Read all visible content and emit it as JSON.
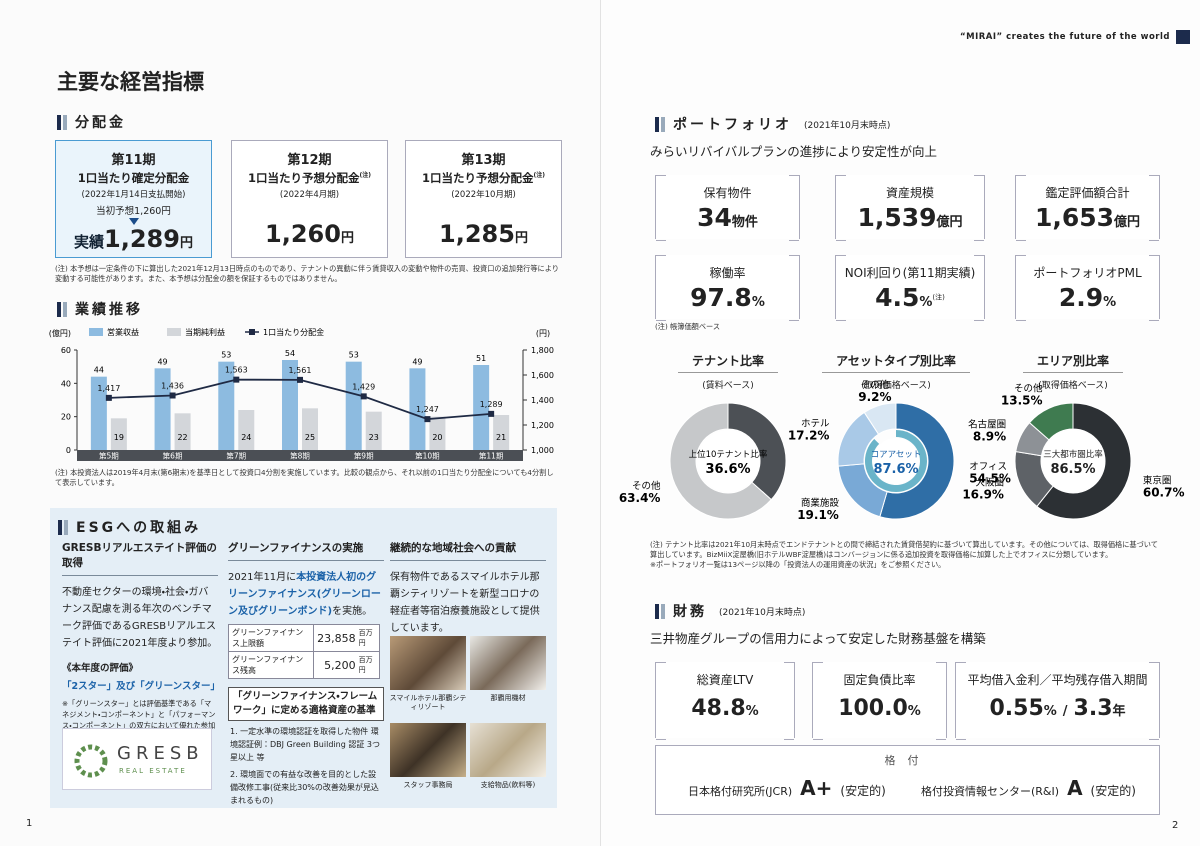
{
  "left_page": {
    "title": "主要な経営指標",
    "distributions": {
      "heading": "分配金",
      "cards": [
        {
          "period": "第11期",
          "label": "1口当たり確定分配金",
          "date": "(2022年1月14日支払開始)",
          "forecast": "当初予想1,260円",
          "result_label": "実績",
          "value": "1,289",
          "unit": "円"
        },
        {
          "period": "第12期",
          "label": "1口当たり予想分配金",
          "note_mark": "(注)",
          "date": "(2022年4月期)",
          "value": "1,260",
          "unit": "円"
        },
        {
          "period": "第13期",
          "label": "1口当たり予想分配金",
          "note_mark": "(注)",
          "date": "(2022年10月期)",
          "value": "1,285",
          "unit": "円"
        }
      ],
      "note": "(注) 本予想は一定条件の下に算出した2021年12月13日時点のものであり、テナントの異動に伴う賃貸収入の変動や物件の売買、投資口の追加発行等により変動する可能性があります。また、本予想は分配金の額を保証するものではありません。"
    },
    "performance": {
      "heading": "業績推移",
      "note": "(注) 本投資法人は2019年4月末(第6期末)を基準日として投資口4分割を実施しています。比較の観点から、それ以前の1口当たり分配金についても4分割して表示しています。"
    },
    "esg": {
      "heading": "ESGへの取組み",
      "gresb": {
        "heading": "GRESBリアルエステイト評価の取得",
        "body": "不動産セクターの環境・社会・ガバナンス配慮を測る年次のベンチマーク評価であるGRESBリアルエステイト評価に2021年度より参加。",
        "subheading": "《本年度の評価》",
        "rating": "「2スター」及び「グリーンスター」",
        "note": "※「グリーンスター」とは評価基準である「マネジメント・コンポーネント」と「パフォーマンス・コンポーネント」の双方において優れた参加者であることを示す評価です。",
        "logo": "GRESB",
        "logo_sub": "REAL ESTATE"
      },
      "green_finance": {
        "heading": "グリーンファイナンスの実施",
        "body": [
          "2021年11月に",
          "本投資法人初のグリーンファイナンス(グリーンローン及びグリーンボンド)",
          "を実施。"
        ],
        "table": [
          [
            "グリーンファイナンス上限額",
            "23,858",
            "百万円"
          ],
          [
            "グリーンファイナンス残高",
            "5,200",
            "百万円"
          ]
        ],
        "framework_title": "「グリーンファイナンス・フレームワーク」に定める適格資産の基準",
        "criteria": [
          "1. 一定水準の環境認証を取得した物件 環境認証例：DBJ Green Building 認証 3つ星以上 等",
          "2. 環境面での有益な改善を目的とした設備改修工事(従来比30%の改善効果が見込まれるもの)"
        ]
      },
      "community": {
        "heading": "継続的な地域社会への貢献",
        "body": "保有物件であるスマイルホテル那覇シティリゾートを新型コロナの軽症者等宿泊療養施設として提供しています。",
        "photo_captions": [
          "スマイルホテル那覇シティリゾート",
          "那覇用機材",
          "スタッフ事務局",
          "支給物品(飲料等)"
        ]
      }
    },
    "page_number": "1"
  },
  "right_page": {
    "tagline": "“MIRAI” creates the future of the world",
    "portfolio": {
      "heading": "ポートフォリオ",
      "date": "(2021年10月末時点)",
      "lead": "みらいリバイバルプランの進捗により安定性が向上",
      "stats": [
        {
          "label": "保有物件",
          "value": "34",
          "unit": "物件"
        },
        {
          "label": "資産規模",
          "value": "1,539",
          "unit": "億円"
        },
        {
          "label": "鑑定評価額合計",
          "value": "1,653",
          "unit": "億円"
        },
        {
          "label": "稼働率",
          "value": "97.8",
          "unit": "%"
        },
        {
          "label": "NOI利回り(第11期実績)",
          "value": "4.5",
          "unit": "%",
          "note_mark": "(注)"
        },
        {
          "label": "ポートフォリオPML",
          "value": "2.9",
          "unit": "%"
        }
      ],
      "note": "(注) 帳簿価額ベース",
      "chart_notes": [
        "(注) テナント比率は2021年10月末時点でエンドテナントとの間で締結された賃貸借契約に基づいて算出しています。その他については、取得価格に基づいて算出しています。BizMiiX淀屋橋(旧ホテルWBF淀屋橋)はコンバージョンに係る追加投資を取得価格に加算した上でオフィスに分類しています。",
        "※ポートフォリオ一覧は13ページ以降の「投資法人の運用資産の状況」をご参照ください。"
      ]
    },
    "finance": {
      "heading": "財務",
      "date": "(2021年10月末時点)",
      "lead": "三井物産グループの信用力によって安定した財務基盤を構築",
      "stats": [
        {
          "label": "総資産LTV",
          "value": "48.8",
          "unit": "%"
        },
        {
          "label": "固定負債比率",
          "value": "100.0",
          "unit": "%"
        },
        {
          "label": "平均借入金利／平均残存借入期間",
          "value": "0.55",
          "unit": "%",
          "separator": "/",
          "value2": "3.3",
          "unit2": "年"
        }
      ],
      "rating_title": "格付",
      "ratings": [
        {
          "agency": "日本格付研究所(JCR)",
          "grade": "A+",
          "outlook": "(安定的)"
        },
        {
          "agency": "格付投資情報センター(R&I)",
          "grade": "A",
          "outlook": "(安定的)"
        }
      ]
    },
    "page_number": "2"
  },
  "chart_data": [
    {
      "type": "bar",
      "categories": [
        "第5期",
        "第6期",
        "第7期",
        "第8期",
        "第9期",
        "第10期",
        "第11期"
      ],
      "series": [
        {
          "name": "営業収益",
          "color": "#8dbbe0",
          "values": [
            44,
            49,
            53,
            54,
            53,
            49,
            51
          ]
        },
        {
          "name": "当期純利益",
          "color": "#d3d6da",
          "values": [
            19,
            22,
            24,
            25,
            23,
            20,
            21
          ]
        },
        {
          "name": "1口当たり分配金",
          "color": "#1f2a44",
          "axis": "y2",
          "marker": "square",
          "values": [
            1417,
            1436,
            1563,
            1561,
            1429,
            1247,
            1289
          ],
          "value_labels": [
            "1,417",
            "1,436",
            "1,563",
            "1,561",
            "1,429",
            "1,247",
            "1,289"
          ]
        }
      ],
      "y_label": "(億円)",
      "y2_label": "(円)",
      "ylim": [
        0,
        60
      ],
      "yticks": [
        0,
        20,
        40,
        60
      ],
      "y2lim": [
        1000,
        1800
      ],
      "y2ticks": [
        {
          "value": 1000,
          "label": "1,000"
        },
        {
          "value": 1200,
          "label": "1,200"
        },
        {
          "value": 1400,
          "label": "1,400"
        },
        {
          "value": 1600,
          "label": "1,600"
        },
        {
          "value": 1800,
          "label": "1,800"
        }
      ],
      "legend": "top"
    },
    {
      "type": "donut",
      "title": "テナント比率",
      "subtitle": "(賃料ベース)",
      "categories": [
        "上位10テナント比率",
        "その他"
      ],
      "values": [
        36.6,
        63.4
      ],
      "value_labels": [
        "36.6%",
        "63.4%"
      ],
      "colors": [
        "#4c5055",
        "#c6c8ca"
      ]
    },
    {
      "type": "donut",
      "title": "アセットタイプ別比率",
      "subtitle": "(取得価格ベース)",
      "categories": [
        "オフィス",
        "商業施設",
        "ホテル",
        "その他"
      ],
      "values": [
        54.5,
        19.1,
        17.2,
        9.2
      ],
      "value_labels": [
        "54.5%",
        "19.1%",
        "17.2%",
        "9.2%"
      ],
      "colors": [
        "#2f6ea6",
        "#79a9d6",
        "#a9c9e7",
        "#d9e7f3"
      ],
      "center_title": "コアアセット",
      "inner_value": 87.6,
      "inner_value_label": "87.6%",
      "inner_color": "#6ab4c9"
    },
    {
      "type": "donut",
      "title": "エリア別比率",
      "subtitle": "(取得価格ベース)",
      "categories": [
        "東京圏",
        "大阪圏",
        "名古屋圏",
        "その他"
      ],
      "values": [
        60.7,
        16.9,
        8.9,
        13.5
      ],
      "value_labels": [
        "60.7%",
        "16.9%",
        "8.9%",
        "13.5%"
      ],
      "colors": [
        "#2c3034",
        "#5e6267",
        "#8d9196",
        "#3f7b50"
      ],
      "center_title": "三大都市圏比率",
      "center_value_label": "86.5%"
    }
  ]
}
